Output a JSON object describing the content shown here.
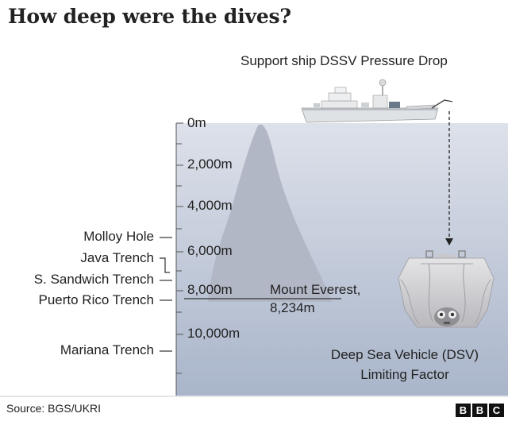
{
  "title": "How deep were the dives?",
  "ship": {
    "label": "Support ship DSSV Pressure Drop",
    "icon": "ship-icon"
  },
  "depth_axis": {
    "ticks": [
      "0m",
      "2,000m",
      "4,000m",
      "6,000m",
      "8,000m",
      "10,000m"
    ]
  },
  "trenches": [
    {
      "name": "Molloy Hole"
    },
    {
      "name": "Java Trench"
    },
    {
      "name": "S. Sandwich Trench"
    },
    {
      "name": "Puerto Rico Trench"
    },
    {
      "name": "Mariana Trench"
    }
  ],
  "everest": {
    "line1": "Mount Everest,",
    "line2": "8,234m",
    "icon": "mountain-icon"
  },
  "dsv": {
    "line1": "Deep Sea Vehicle (DSV)",
    "line2": "Limiting Factor",
    "icon": "submersible-icon"
  },
  "source": "Source: BGS/UKRI",
  "logo": [
    "B",
    "B",
    "C"
  ],
  "colors": {
    "sea_top": "#d6dbe6",
    "sea_bottom": "#aab7cc",
    "mountain": "#b3b8c7",
    "text": "#222222"
  }
}
